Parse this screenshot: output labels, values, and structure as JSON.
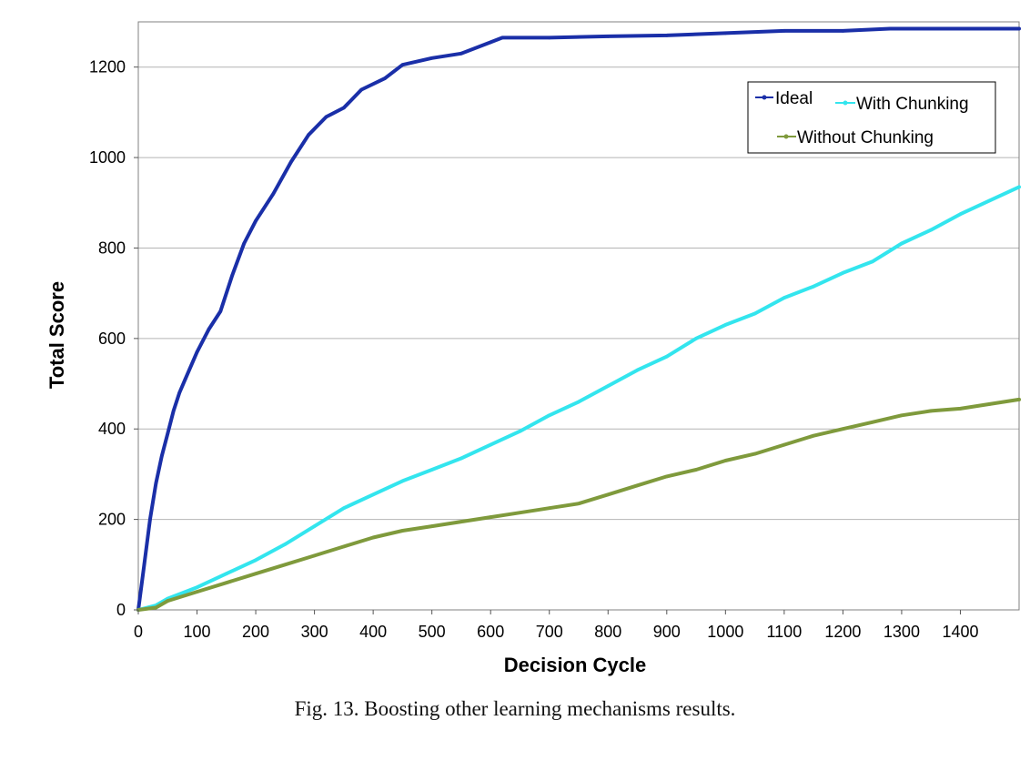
{
  "caption": "Fig. 13. Boosting other learning mechanisms results.",
  "chart_data": {
    "type": "line",
    "title": "",
    "xlabel": "Decision Cycle",
    "ylabel": "Total Score",
    "xlim": [
      0,
      1500
    ],
    "ylim": [
      0,
      1300
    ],
    "x_ticks": [
      0,
      100,
      200,
      300,
      400,
      500,
      600,
      700,
      800,
      900,
      1000,
      1100,
      1200,
      1300,
      1400
    ],
    "y_ticks": [
      0,
      200,
      400,
      600,
      800,
      1000,
      1200
    ],
    "grid": "horizontal",
    "legend_position": "top-right",
    "series": [
      {
        "name": "Ideal",
        "color": "#1a2fa8",
        "x": [
          0,
          10,
          20,
          30,
          40,
          50,
          60,
          70,
          80,
          100,
          120,
          140,
          160,
          180,
          200,
          230,
          260,
          290,
          320,
          350,
          380,
          420,
          450,
          500,
          550,
          600,
          620,
          700,
          800,
          900,
          1000,
          1100,
          1200,
          1280,
          1400,
          1500
        ],
        "y": [
          0,
          100,
          200,
          280,
          340,
          390,
          440,
          480,
          510,
          570,
          620,
          660,
          740,
          810,
          860,
          920,
          990,
          1050,
          1090,
          1110,
          1150,
          1175,
          1205,
          1220,
          1230,
          1255,
          1265,
          1265,
          1268,
          1270,
          1275,
          1280,
          1280,
          1285,
          1285,
          1285
        ]
      },
      {
        "name": "With Chunking",
        "color": "#33e5ee",
        "x": [
          0,
          30,
          50,
          100,
          150,
          200,
          250,
          300,
          350,
          400,
          450,
          500,
          550,
          600,
          650,
          700,
          750,
          800,
          850,
          900,
          950,
          1000,
          1050,
          1100,
          1150,
          1200,
          1250,
          1300,
          1350,
          1400,
          1450,
          1500
        ],
        "y": [
          0,
          10,
          25,
          50,
          80,
          110,
          145,
          185,
          225,
          255,
          285,
          310,
          335,
          365,
          395,
          430,
          460,
          495,
          530,
          560,
          600,
          630,
          655,
          690,
          715,
          745,
          770,
          810,
          840,
          875,
          905,
          935
        ]
      },
      {
        "name": "Without Chunking",
        "color": "#7f9a3c",
        "x": [
          0,
          30,
          50,
          100,
          150,
          200,
          250,
          300,
          350,
          400,
          450,
          500,
          550,
          600,
          650,
          700,
          750,
          800,
          850,
          900,
          950,
          1000,
          1050,
          1100,
          1150,
          1200,
          1250,
          1300,
          1350,
          1400,
          1450,
          1500
        ],
        "y": [
          0,
          5,
          20,
          40,
          60,
          80,
          100,
          120,
          140,
          160,
          175,
          185,
          195,
          205,
          215,
          225,
          235,
          255,
          275,
          295,
          310,
          330,
          345,
          365,
          385,
          400,
          415,
          430,
          440,
          445,
          455,
          465
        ]
      }
    ]
  }
}
